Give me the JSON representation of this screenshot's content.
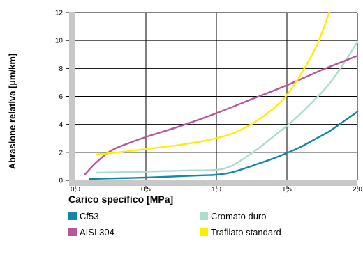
{
  "chart_data": {
    "type": "line",
    "xlabel": "Carico specifico [MPa]",
    "ylabel": "Abrasione relativa [µm/km]",
    "xlim": [
      0,
      2.0
    ],
    "ylim": [
      0,
      12
    ],
    "x_ticks": [
      "0,0",
      "0,5",
      "1,0",
      "1,5",
      "2,0"
    ],
    "y_ticks": [
      "0",
      "2",
      "4",
      "6",
      "8",
      "10",
      "12"
    ],
    "grid": true,
    "legend_position": "bottom",
    "series": [
      {
        "name": "Cf53",
        "color": "#1188aa",
        "points": [
          [
            0.1,
            0.1
          ],
          [
            0.3,
            0.15
          ],
          [
            0.5,
            0.2
          ],
          [
            0.7,
            0.28
          ],
          [
            0.9,
            0.36
          ],
          [
            1.0,
            0.4
          ],
          [
            1.1,
            0.55
          ],
          [
            1.2,
            0.85
          ],
          [
            1.3,
            1.2
          ],
          [
            1.4,
            1.55
          ],
          [
            1.5,
            1.95
          ],
          [
            1.6,
            2.4
          ],
          [
            1.7,
            2.95
          ],
          [
            1.8,
            3.5
          ],
          [
            1.9,
            4.2
          ],
          [
            2.0,
            4.9
          ]
        ]
      },
      {
        "name": "Cromato duro",
        "color": "#aaddcc",
        "points": [
          [
            0.15,
            0.55
          ],
          [
            0.4,
            0.6
          ],
          [
            0.6,
            0.65
          ],
          [
            0.8,
            0.7
          ],
          [
            1.0,
            0.75
          ],
          [
            1.1,
            1.0
          ],
          [
            1.2,
            1.6
          ],
          [
            1.3,
            2.3
          ],
          [
            1.4,
            3.1
          ],
          [
            1.5,
            3.9
          ],
          [
            1.6,
            4.8
          ],
          [
            1.7,
            5.8
          ],
          [
            1.8,
            6.9
          ],
          [
            1.9,
            8.3
          ],
          [
            2.0,
            9.9
          ]
        ]
      },
      {
        "name": "AISI 304",
        "color": "#bb5599",
        "points": [
          [
            0.07,
            0.45
          ],
          [
            0.15,
            1.3
          ],
          [
            0.25,
            2.1
          ],
          [
            0.35,
            2.55
          ],
          [
            0.5,
            3.1
          ],
          [
            0.75,
            3.9
          ],
          [
            1.0,
            4.8
          ],
          [
            1.25,
            5.8
          ],
          [
            1.5,
            6.8
          ],
          [
            1.75,
            7.9
          ],
          [
            2.0,
            8.9
          ]
        ]
      },
      {
        "name": "Trafilato standard",
        "color": "#ffee00",
        "points": [
          [
            0.15,
            1.85
          ],
          [
            0.35,
            2.05
          ],
          [
            0.55,
            2.3
          ],
          [
            0.75,
            2.55
          ],
          [
            0.95,
            2.9
          ],
          [
            1.1,
            3.3
          ],
          [
            1.2,
            3.75
          ],
          [
            1.3,
            4.35
          ],
          [
            1.4,
            5.1
          ],
          [
            1.5,
            6.1
          ],
          [
            1.6,
            7.6
          ],
          [
            1.7,
            9.4
          ],
          [
            1.75,
            10.6
          ],
          [
            1.8,
            12.0
          ]
        ]
      }
    ]
  },
  "legend": [
    {
      "label": "Cf53",
      "color": "#1188aa"
    },
    {
      "label": "Cromato duro",
      "color": "#aaddcc"
    },
    {
      "label": "AISI 304",
      "color": "#bb5599"
    },
    {
      "label": "Trafilato standard",
      "color": "#ffee00"
    }
  ]
}
